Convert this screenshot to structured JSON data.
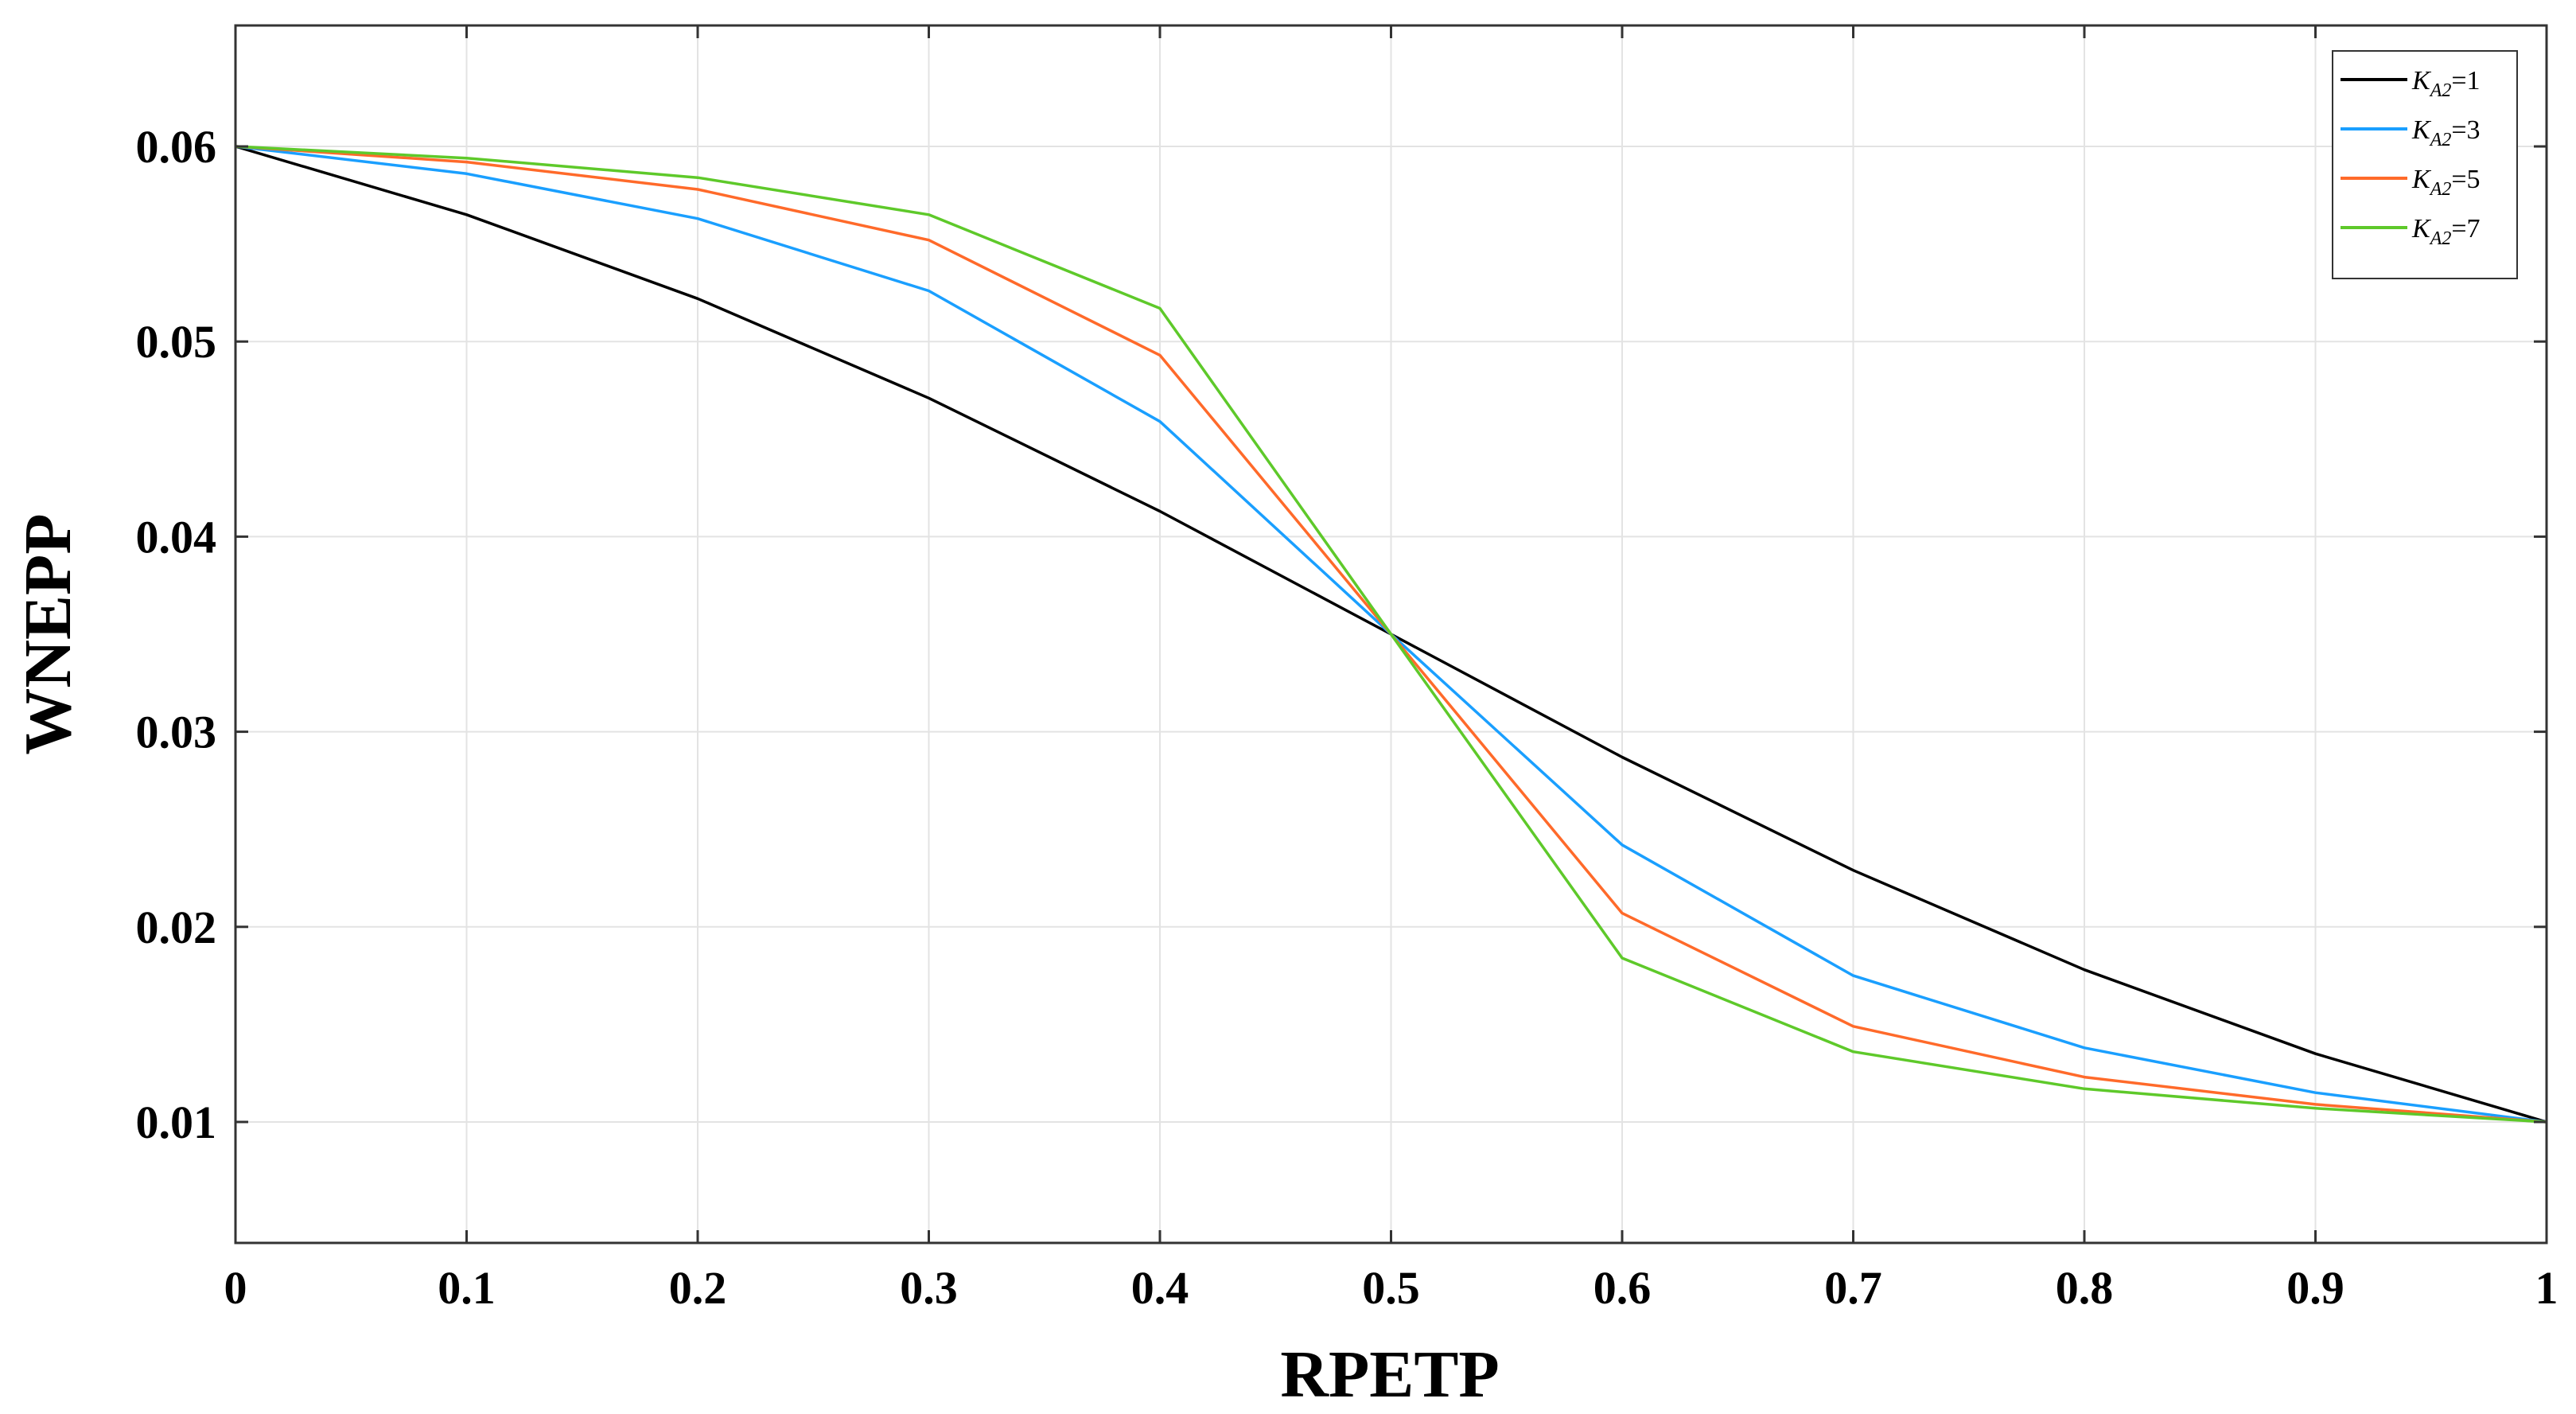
{
  "chart_data": {
    "type": "line",
    "title": "",
    "xlabel": "RPETP",
    "ylabel": "WNEPP",
    "xlim": [
      0,
      1
    ],
    "ylim": [
      0.0038,
      0.0662
    ],
    "grid": true,
    "legend_position": "top-right",
    "x": [
      0,
      0.1,
      0.2,
      0.3,
      0.4,
      0.5,
      0.6,
      0.7,
      0.8,
      0.9,
      1
    ],
    "x_ticks": [
      0,
      0.1,
      0.2,
      0.3,
      0.4,
      0.5,
      0.6,
      0.7,
      0.8,
      0.9,
      1
    ],
    "x_tick_labels": [
      "0",
      "0.1",
      "0.2",
      "0.3",
      "0.4",
      "0.5",
      "0.6",
      "0.7",
      "0.8",
      "0.9",
      "1"
    ],
    "y_ticks": [
      0.01,
      0.02,
      0.03,
      0.04,
      0.05,
      0.06
    ],
    "y_tick_labels": [
      "0.01",
      "0.02",
      "0.03",
      "0.04",
      "0.05",
      "0.06"
    ],
    "series": [
      {
        "name": "K_A2=1",
        "legend_symbol": "K",
        "legend_subscript": "A2",
        "legend_suffix": "=1",
        "color": "#000000",
        "values": [
          0.06,
          0.0565,
          0.0522,
          0.0471,
          0.0413,
          0.035,
          0.0287,
          0.0229,
          0.0178,
          0.0135,
          0.01
        ]
      },
      {
        "name": "K_A2=3",
        "legend_symbol": "K",
        "legend_subscript": "A2",
        "legend_suffix": "=3",
        "color": "#1a9fff",
        "values": [
          0.06,
          0.0586,
          0.0563,
          0.0526,
          0.0459,
          0.035,
          0.0242,
          0.0175,
          0.0138,
          0.0115,
          0.01
        ]
      },
      {
        "name": "K_A2=5",
        "legend_symbol": "K",
        "legend_subscript": "A2",
        "legend_suffix": "=5",
        "color": "#ff6a2a",
        "values": [
          0.06,
          0.0592,
          0.0578,
          0.0552,
          0.0493,
          0.035,
          0.0207,
          0.0149,
          0.0123,
          0.0109,
          0.01
        ]
      },
      {
        "name": "K_A2=7",
        "legend_symbol": "K",
        "legend_subscript": "A2",
        "legend_suffix": "=7",
        "color": "#5ec92a",
        "values": [
          0.06,
          0.0594,
          0.0584,
          0.0565,
          0.0517,
          0.035,
          0.0184,
          0.0136,
          0.0117,
          0.0107,
          0.01
        ]
      }
    ]
  }
}
